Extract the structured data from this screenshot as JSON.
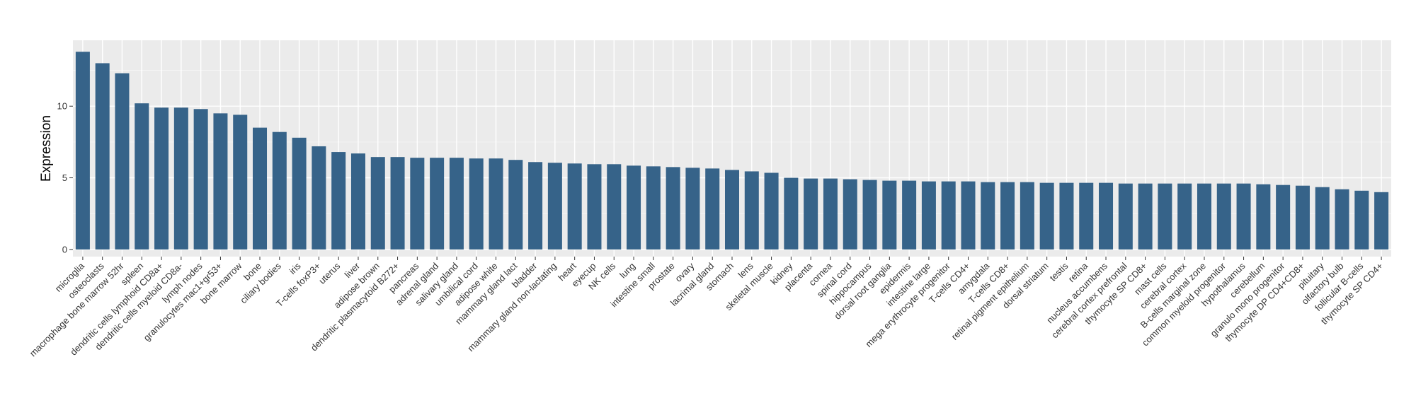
{
  "chart_data": {
    "type": "bar",
    "title": "",
    "xlabel": "",
    "ylabel": "Expression",
    "ylim": [
      -0.5,
      14.6
    ],
    "yticks": [
      0,
      5,
      10
    ],
    "grid": true,
    "legend": "none",
    "bar_color": "#366389",
    "panel_color": "#ebebeb",
    "categories": [
      "microglia",
      "osteoclasts",
      "macrophage bone marrow 52hr",
      "spleen",
      "dendritic cells lymphoid CD8a+",
      "dendritic cells myeloid CD8a-",
      "lymph nodes",
      "granulocytes mac1+gr53+",
      "bone marrow",
      "bone",
      "ciliary bodies",
      "iris",
      "T-cells foxP3+",
      "uterus",
      "liver",
      "adipose brown",
      "dendritic plasmacytoid B272+",
      "pancreas",
      "adrenal gland",
      "salivary gland",
      "umbilical cord",
      "adipose white",
      "mammary gland  lact",
      "bladder",
      "mammary gland non-lactating",
      "heart",
      "eyecup",
      "NK cells",
      "lung",
      "intestine small",
      "prostate",
      "ovary",
      "lacrimal gland",
      "stomach",
      "lens",
      "skeletal muscle",
      "kidney",
      "placenta",
      "cornea",
      "spinal cord",
      "hippocampus",
      "dorsal root ganglia",
      "epidermis",
      "intestine large",
      "mega erythrocyte progenitor",
      "T-cells CD4+",
      "amygdala",
      "T-cells CD8+",
      "retinal pigment epithelium",
      "dorsal striatum",
      "testis",
      "retina",
      "nucleus accumbens",
      "cerebral cortex prefrontal",
      "thymocyte SP CD8+",
      "mast cells",
      "cerebral cortex",
      "B-cells marginal zone",
      "common myeloid progenitor",
      "hypothalamus",
      "cerebellum",
      "granulo mono progenitor",
      "thymocyte DP CD4+CD8+",
      "pituitary",
      "olfactory bulb",
      "follicular B-cells",
      "thymocyte SP CD4+"
    ],
    "values": [
      13.8,
      13.0,
      12.3,
      10.2,
      9.9,
      9.9,
      9.8,
      9.5,
      9.4,
      8.5,
      8.2,
      7.8,
      7.2,
      6.8,
      6.7,
      6.45,
      6.45,
      6.4,
      6.4,
      6.4,
      6.35,
      6.35,
      6.25,
      6.1,
      6.05,
      6.0,
      5.95,
      5.95,
      5.85,
      5.8,
      5.75,
      5.7,
      5.65,
      5.55,
      5.45,
      5.35,
      5.0,
      4.95,
      4.95,
      4.9,
      4.85,
      4.8,
      4.8,
      4.75,
      4.75,
      4.75,
      4.7,
      4.7,
      4.7,
      4.65,
      4.65,
      4.65,
      4.65,
      4.6,
      4.6,
      4.6,
      4.6,
      4.6,
      4.6,
      4.6,
      4.55,
      4.5,
      4.45,
      4.35,
      4.2,
      4.1,
      4.0
    ]
  }
}
